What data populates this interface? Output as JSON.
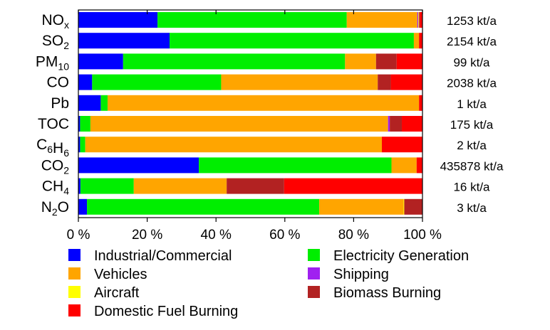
{
  "chart_data": {
    "type": "bar",
    "orientation": "horizontal",
    "stacked": true,
    "categories": [
      {
        "base": "NO",
        "sub": "x"
      },
      {
        "base": "SO",
        "sub": "2"
      },
      {
        "base": "PM",
        "sub": "10"
      },
      {
        "base": "CO",
        "sub": ""
      },
      {
        "base": "Pb",
        "sub": ""
      },
      {
        "base": "TOC",
        "sub": ""
      },
      {
        "parts": [
          {
            "t": "C",
            "sub": "6"
          },
          {
            "t": "H",
            "sub": "6"
          }
        ]
      },
      {
        "base": "CO",
        "sub": "2"
      },
      {
        "base": "CH",
        "sub": "4"
      },
      {
        "base": "N",
        "sub": "2",
        "tail": "O"
      }
    ],
    "totals": [
      "1253 kt/a",
      "2154 kt/a",
      "99 kt/a",
      "2038 kt/a",
      "1 kt/a",
      "175 kt/a",
      "2 kt/a",
      "435878 kt/a",
      "16 kt/a",
      "3 kt/a"
    ],
    "series": [
      {
        "name": "Industrial/Commercial",
        "color": "#0000ff",
        "values": [
          23,
          26.5,
          13,
          4,
          6.5,
          0.5,
          0.5,
          35,
          0.6,
          2.5
        ]
      },
      {
        "name": "Electricity Generation",
        "color": "#00ee00",
        "values": [
          55,
          71,
          64.5,
          37.5,
          2,
          3,
          1.5,
          56,
          15.5,
          67.5
        ]
      },
      {
        "name": "Vehicles",
        "color": "#ffa500",
        "values": [
          20.5,
          1.5,
          9,
          45.5,
          90.5,
          86.5,
          86.2,
          7.3,
          27,
          24.5
        ]
      },
      {
        "name": "Shipping",
        "color": "#a020f0",
        "values": [
          0.3,
          0,
          0,
          0,
          0,
          0.5,
          0,
          0,
          0,
          0
        ]
      },
      {
        "name": "Aircraft",
        "color": "#ffff00",
        "values": [
          0.2,
          0,
          0,
          0,
          0,
          0,
          0,
          0,
          0,
          0.2
        ]
      },
      {
        "name": "Biomass Burning",
        "color": "#b22222",
        "values": [
          0.2,
          0,
          6,
          3.8,
          0,
          3.5,
          0,
          0,
          16.7,
          5.3
        ]
      },
      {
        "name": "Domestic Fuel Burning",
        "color": "#ff0000",
        "values": [
          0.8,
          1,
          7.5,
          9.2,
          1,
          6,
          11.8,
          1.7,
          40.2,
          0
        ]
      }
    ],
    "xlim": [
      0,
      100
    ],
    "xticks": [
      "0 %",
      "20 %",
      "40 %",
      "60 %",
      "80 %",
      "100 %"
    ],
    "grid": false,
    "legend_position": "bottom",
    "legend_order": [
      "Industrial/Commercial",
      "Electricity Generation",
      "Vehicles",
      "Shipping",
      "Aircraft",
      "Biomass Burning",
      "Domestic Fuel Burning"
    ]
  }
}
